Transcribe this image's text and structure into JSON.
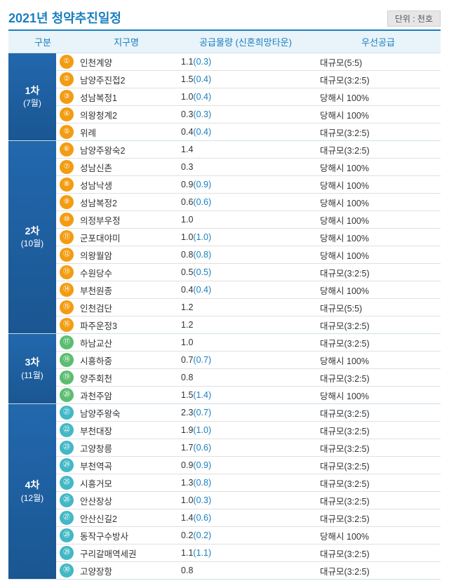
{
  "title": "2021년 청약추진일정",
  "unit_label": "단위 : 천호",
  "columns": {
    "category": "구분",
    "district": "지구명",
    "supply": "공급물량 (신혼희망타운)",
    "priority": "우선공급"
  },
  "colors": {
    "phase_bg_top": "#2268ad",
    "phase_bg_bottom": "#1a5692",
    "badge_orange": "#f39c12",
    "badge_green": "#5bbd72",
    "badge_teal": "#42b8c5",
    "header_bg": "#e8f3fa",
    "accent": "#1a7fbf"
  },
  "phases": [
    {
      "label": "1차",
      "month": "(7월)",
      "badge_color": "#f39c12",
      "rows": [
        {
          "num": "①",
          "name": "인천계양",
          "supply": "1.1",
          "sub": "(0.3)",
          "priority": "대규모(5:5)"
        },
        {
          "num": "②",
          "name": "남양주진접2",
          "supply": "1.5",
          "sub": "(0.4)",
          "priority": "대규모(3:2:5)"
        },
        {
          "num": "③",
          "name": "성남복정1",
          "supply": "1.0",
          "sub": "(0.4)",
          "priority": "당해시 100%"
        },
        {
          "num": "④",
          "name": "의왕청계2",
          "supply": "0.3",
          "sub": "(0.3)",
          "priority": "당해시 100%"
        },
        {
          "num": "⑤",
          "name": "위례",
          "supply": "0.4",
          "sub": "(0.4)",
          "priority": "대규모(3:2:5)"
        }
      ]
    },
    {
      "label": "2차",
      "month": "(10월)",
      "badge_color": "#f39c12",
      "rows": [
        {
          "num": "⑥",
          "name": "남양주왕숙2",
          "supply": "1.4",
          "sub": "",
          "priority": "대규모(3:2:5)"
        },
        {
          "num": "⑦",
          "name": "성남신촌",
          "supply": "0.3",
          "sub": "",
          "priority": "당해시 100%"
        },
        {
          "num": "⑧",
          "name": "성남낙생",
          "supply": "0.9",
          "sub": "(0.9)",
          "priority": "당해시 100%"
        },
        {
          "num": "⑨",
          "name": "성남복정2",
          "supply": "0.6",
          "sub": "(0.6)",
          "priority": "당해시 100%"
        },
        {
          "num": "⑩",
          "name": "의정부우정",
          "supply": "1.0",
          "sub": "",
          "priority": "당해시 100%"
        },
        {
          "num": "⑪",
          "name": "군포대야미",
          "supply": "1.0",
          "sub": "(1.0)",
          "priority": "당해시 100%"
        },
        {
          "num": "⑫",
          "name": "의왕월암",
          "supply": "0.8",
          "sub": "(0.8)",
          "priority": "당해시 100%"
        },
        {
          "num": "⑬",
          "name": "수원당수",
          "supply": "0.5",
          "sub": "(0.5)",
          "priority": "대규모(3:2:5)"
        },
        {
          "num": "⑭",
          "name": "부천원종",
          "supply": "0.4",
          "sub": "(0.4)",
          "priority": "당해시 100%"
        },
        {
          "num": "⑮",
          "name": "인천검단",
          "supply": "1.2",
          "sub": "",
          "priority": "대규모(5:5)"
        },
        {
          "num": "⑯",
          "name": "파주운정3",
          "supply": "1.2",
          "sub": "",
          "priority": "대규모(3:2:5)"
        }
      ]
    },
    {
      "label": "3차",
      "month": "(11월)",
      "badge_color": "#5bbd72",
      "rows": [
        {
          "num": "⑰",
          "name": "하남교산",
          "supply": "1.0",
          "sub": "",
          "priority": "대규모(3:2:5)"
        },
        {
          "num": "⑱",
          "name": "시흥하중",
          "supply": "0.7",
          "sub": "(0.7)",
          "priority": "당해시 100%"
        },
        {
          "num": "⑲",
          "name": "양주회천",
          "supply": "0.8",
          "sub": "",
          "priority": "대규모(3:2:5)"
        },
        {
          "num": "⑳",
          "name": "과천주암",
          "supply": "1.5",
          "sub": "(1.4)",
          "priority": "당해시 100%"
        }
      ]
    },
    {
      "label": "4차",
      "month": "(12월)",
      "badge_color": "#42b8c5",
      "rows": [
        {
          "num": "㉑",
          "name": "남양주왕숙",
          "supply": "2.3",
          "sub": "(0.7)",
          "priority": "대규모(3:2:5)"
        },
        {
          "num": "㉒",
          "name": "부천대장",
          "supply": "1.9",
          "sub": "(1.0)",
          "priority": "대규모(3:2:5)"
        },
        {
          "num": "㉓",
          "name": "고양창릉",
          "supply": "1.7",
          "sub": "(0.6)",
          "priority": "대규모(3:2:5)"
        },
        {
          "num": "㉔",
          "name": "부천역곡",
          "supply": "0.9",
          "sub": "(0.9)",
          "priority": "대규모(3:2:5)"
        },
        {
          "num": "㉕",
          "name": "시흥거모",
          "supply": "1.3",
          "sub": "(0.8)",
          "priority": "대규모(3:2:5)"
        },
        {
          "num": "㉖",
          "name": "안산장상",
          "supply": "1.0",
          "sub": "(0.3)",
          "priority": "대규모(3:2:5)"
        },
        {
          "num": "㉗",
          "name": "안산신길2",
          "supply": "1.4",
          "sub": "(0.6)",
          "priority": "대규모(3:2:5)"
        },
        {
          "num": "㉘",
          "name": "동작구수방사",
          "supply": "0.2",
          "sub": "(0.2)",
          "priority": "당해시 100%"
        },
        {
          "num": "㉙",
          "name": "구리갈매역세권",
          "supply": "1.1",
          "sub": "(1.1)",
          "priority": "대규모(3:2:5)"
        },
        {
          "num": "㉚",
          "name": "고양장항",
          "supply": "0.8",
          "sub": "",
          "priority": "대규모(3:2:5)"
        }
      ]
    }
  ]
}
